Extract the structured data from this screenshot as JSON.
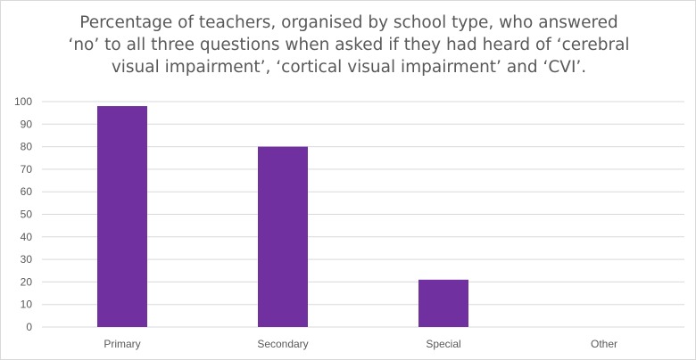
{
  "chart_data": {
    "type": "bar",
    "title_lines": [
      "Percentage of teachers, organised by school type, who answered",
      "‘no’ to all three questions when asked if they had heard of ‘cerebral",
      "visual impairment’, ‘cortical visual impairment’ and ‘CVI’."
    ],
    "categories": [
      "Primary",
      "Secondary",
      "Special",
      "Other"
    ],
    "values": [
      98,
      80,
      21,
      0
    ],
    "xlabel": "",
    "ylabel": "",
    "ylim": [
      0,
      100
    ],
    "yticks": [
      "0",
      "10",
      "20",
      "30",
      "40",
      "50",
      "60",
      "70",
      "80",
      "90",
      "100"
    ],
    "grid": true,
    "legend": "none",
    "bar_color": "#7030a0",
    "grid_color": "#d9d9d9"
  }
}
